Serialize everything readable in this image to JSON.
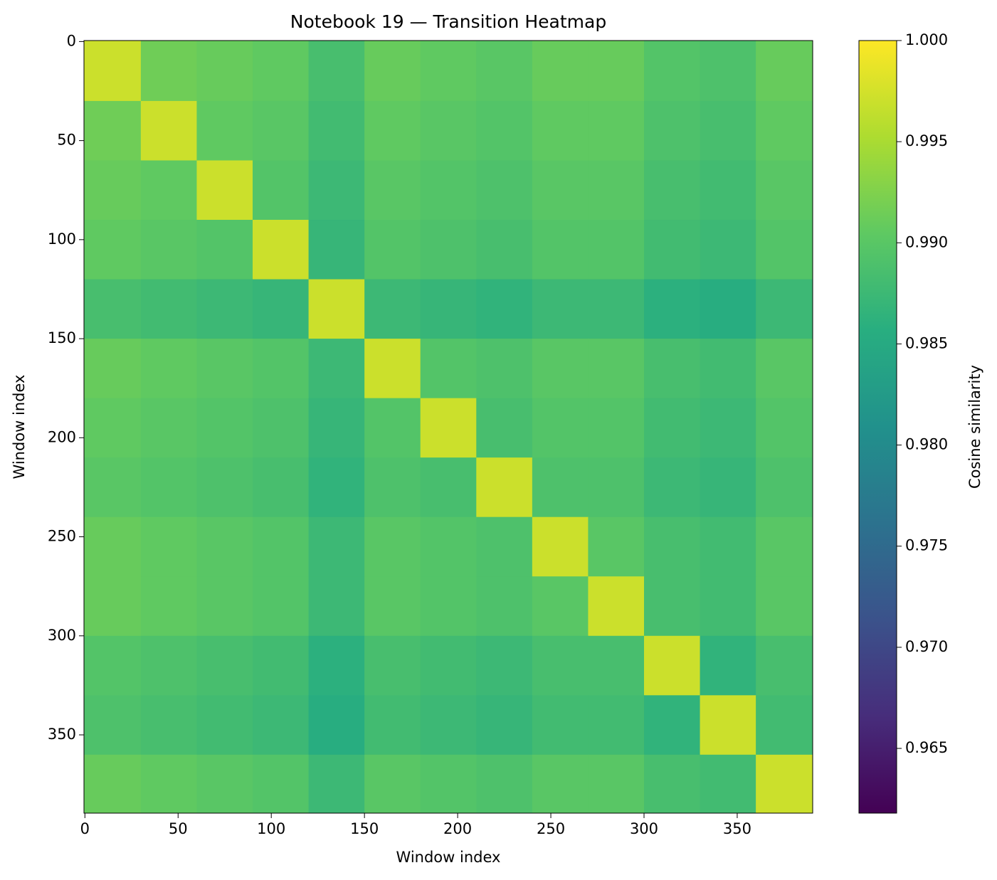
{
  "chart_data": {
    "type": "heatmap",
    "title": "Notebook 19 — Transition Heatmap",
    "x_label": "Window index",
    "y_label": "Window index",
    "colorbar_label": "Cosine similarity",
    "colormap": "viridis",
    "x": [
      15,
      45,
      75,
      105,
      135,
      165,
      195,
      225,
      255,
      285,
      315,
      345,
      375
    ],
    "y": [
      15,
      45,
      75,
      105,
      135,
      165,
      195,
      225,
      255,
      285,
      315,
      345,
      375
    ],
    "values": [
      [
        0.997,
        0.9915,
        0.991,
        0.9905,
        0.9885,
        0.991,
        0.9905,
        0.99,
        0.991,
        0.991,
        0.9895,
        0.989,
        0.991
      ],
      [
        0.9915,
        0.997,
        0.9905,
        0.99,
        0.988,
        0.9905,
        0.99,
        0.9895,
        0.9905,
        0.9905,
        0.989,
        0.9885,
        0.9905
      ],
      [
        0.991,
        0.9905,
        0.997,
        0.9895,
        0.9875,
        0.99,
        0.9895,
        0.989,
        0.99,
        0.99,
        0.9885,
        0.988,
        0.99
      ],
      [
        0.9905,
        0.99,
        0.9895,
        0.997,
        0.987,
        0.9895,
        0.989,
        0.9885,
        0.9895,
        0.9895,
        0.988,
        0.9875,
        0.9895
      ],
      [
        0.9885,
        0.988,
        0.9875,
        0.987,
        0.997,
        0.9875,
        0.987,
        0.9865,
        0.9875,
        0.9875,
        0.986,
        0.9855,
        0.9875
      ],
      [
        0.991,
        0.9905,
        0.99,
        0.9895,
        0.9875,
        0.997,
        0.9895,
        0.989,
        0.99,
        0.99,
        0.9885,
        0.988,
        0.99
      ],
      [
        0.9905,
        0.99,
        0.9895,
        0.989,
        0.987,
        0.9895,
        0.997,
        0.9885,
        0.9895,
        0.9895,
        0.988,
        0.9875,
        0.9895
      ],
      [
        0.99,
        0.9895,
        0.989,
        0.9885,
        0.9865,
        0.989,
        0.9885,
        0.997,
        0.989,
        0.989,
        0.9875,
        0.987,
        0.989
      ],
      [
        0.991,
        0.9905,
        0.99,
        0.9895,
        0.9875,
        0.99,
        0.9895,
        0.989,
        0.997,
        0.99,
        0.9885,
        0.988,
        0.99
      ],
      [
        0.991,
        0.9905,
        0.99,
        0.9895,
        0.9875,
        0.99,
        0.9895,
        0.989,
        0.99,
        0.997,
        0.9885,
        0.988,
        0.99
      ],
      [
        0.9895,
        0.989,
        0.9885,
        0.988,
        0.986,
        0.9885,
        0.988,
        0.9875,
        0.9885,
        0.9885,
        0.997,
        0.9865,
        0.9885
      ],
      [
        0.989,
        0.9885,
        0.988,
        0.9875,
        0.9855,
        0.988,
        0.9875,
        0.987,
        0.988,
        0.988,
        0.9865,
        0.997,
        0.988
      ],
      [
        0.991,
        0.9905,
        0.99,
        0.9895,
        0.9875,
        0.99,
        0.9895,
        0.989,
        0.99,
        0.99,
        0.9885,
        0.988,
        0.997
      ]
    ],
    "xlim": [
      -0.5,
      390.5
    ],
    "ylim": [
      389.5,
      -0.5
    ],
    "xticks": [
      0,
      50,
      100,
      150,
      200,
      250,
      300,
      350
    ],
    "yticks": [
      0,
      50,
      100,
      150,
      200,
      250,
      300,
      350
    ],
    "clim": [
      0.9618,
      1.0
    ],
    "cticks": [
      0.965,
      {
        "value": 0.97,
        "label": "0.970"
      },
      0.975,
      {
        "value": 0.98,
        "label": "0.980"
      },
      0.985,
      {
        "value": 0.99,
        "label": "0.990"
      },
      0.995,
      {
        "value": 1.0,
        "label": "1.000"
      }
    ]
  }
}
